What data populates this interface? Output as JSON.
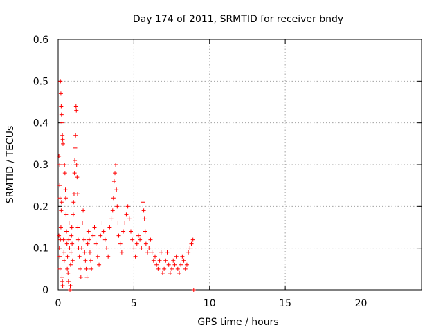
{
  "chart_data": {
    "type": "scatter",
    "title": "Day 174 of 2011, SRMTID for receiver bndy",
    "xlabel": "GPS time / hours",
    "ylabel": "SRMTID / TECUs",
    "xlim": [
      0,
      24
    ],
    "ylim": [
      0,
      0.6
    ],
    "xticks": [
      0,
      5,
      10,
      15,
      20
    ],
    "xtick_labels": [
      "0",
      "5",
      "10",
      "15",
      "20"
    ],
    "yticks": [
      0,
      0.1,
      0.2,
      0.3,
      0.4,
      0.5,
      0.6
    ],
    "ytick_labels": [
      "0",
      "0.1",
      "0.2",
      "0.3",
      "0.4",
      "0.5",
      "0.6"
    ],
    "grid": true,
    "marker": "+",
    "color": "#ff0000",
    "series": [
      {
        "name": "SRMTID",
        "points": [
          [
            0.05,
            0.32
          ],
          [
            0.1,
            0.3
          ],
          [
            0.1,
            0.25
          ],
          [
            0.12,
            0.22
          ],
          [
            0.15,
            0.5
          ],
          [
            0.18,
            0.47
          ],
          [
            0.2,
            0.44
          ],
          [
            0.22,
            0.42
          ],
          [
            0.25,
            0.4
          ],
          [
            0.28,
            0.37
          ],
          [
            0.3,
            0.36
          ],
          [
            0.32,
            0.35
          ],
          [
            0.05,
            0.13
          ],
          [
            0.08,
            0.1
          ],
          [
            0.1,
            0.08
          ],
          [
            0.12,
            0.05
          ],
          [
            0.15,
            0.12
          ],
          [
            0.18,
            0.15
          ],
          [
            0.2,
            0.19
          ],
          [
            0.22,
            0.21
          ],
          [
            0.25,
            0.03
          ],
          [
            0.28,
            0.02
          ],
          [
            0.3,
            0.01
          ],
          [
            0.35,
            0.12
          ],
          [
            0.38,
            0.09
          ],
          [
            0.4,
            0.07
          ],
          [
            0.42,
            0.3
          ],
          [
            0.45,
            0.28
          ],
          [
            0.48,
            0.24
          ],
          [
            0.5,
            0.22
          ],
          [
            0.52,
            0.18
          ],
          [
            0.55,
            0.14
          ],
          [
            0.58,
            0.11
          ],
          [
            0.6,
            0.05
          ],
          [
            0.62,
            0.08
          ],
          [
            0.65,
            0.04
          ],
          [
            0.68,
            0.02
          ],
          [
            0.7,
            0.12
          ],
          [
            0.72,
            0.16
          ],
          [
            0.75,
            0.1
          ],
          [
            0.78,
            0.0
          ],
          [
            0.8,
            0.01
          ],
          [
            0.82,
            0.06
          ],
          [
            0.85,
            0.09
          ],
          [
            0.88,
            0.13
          ],
          [
            0.9,
            0.15
          ],
          [
            0.92,
            0.11
          ],
          [
            0.95,
            0.07
          ],
          [
            1.0,
            0.18
          ],
          [
            1.02,
            0.21
          ],
          [
            1.05,
            0.23
          ],
          [
            1.08,
            0.28
          ],
          [
            1.1,
            0.31
          ],
          [
            1.12,
            0.34
          ],
          [
            1.15,
            0.37
          ],
          [
            1.18,
            0.44
          ],
          [
            1.2,
            0.43
          ],
          [
            1.22,
            0.3
          ],
          [
            1.25,
            0.27
          ],
          [
            1.28,
            0.23
          ],
          [
            1.3,
            0.15
          ],
          [
            1.32,
            0.12
          ],
          [
            1.35,
            0.1
          ],
          [
            1.4,
            0.08
          ],
          [
            1.45,
            0.05
          ],
          [
            1.5,
            0.03
          ],
          [
            1.55,
            0.1
          ],
          [
            1.6,
            0.16
          ],
          [
            1.65,
            0.19
          ],
          [
            1.7,
            0.12
          ],
          [
            1.75,
            0.09
          ],
          [
            1.8,
            0.07
          ],
          [
            1.85,
            0.05
          ],
          [
            1.9,
            0.03
          ],
          [
            1.95,
            0.11
          ],
          [
            2.0,
            0.14
          ],
          [
            2.05,
            0.12
          ],
          [
            2.1,
            0.09
          ],
          [
            2.15,
            0.07
          ],
          [
            2.2,
            0.05
          ],
          [
            2.3,
            0.13
          ],
          [
            2.4,
            0.15
          ],
          [
            2.5,
            0.11
          ],
          [
            2.6,
            0.08
          ],
          [
            2.7,
            0.06
          ],
          [
            2.8,
            0.13
          ],
          [
            2.9,
            0.16
          ],
          [
            3.0,
            0.14
          ],
          [
            3.1,
            0.12
          ],
          [
            3.2,
            0.1
          ],
          [
            3.3,
            0.08
          ],
          [
            3.4,
            0.15
          ],
          [
            3.5,
            0.17
          ],
          [
            3.6,
            0.19
          ],
          [
            3.65,
            0.22
          ],
          [
            3.7,
            0.26
          ],
          [
            3.75,
            0.28
          ],
          [
            3.8,
            0.3
          ],
          [
            3.85,
            0.24
          ],
          [
            3.9,
            0.2
          ],
          [
            3.95,
            0.16
          ],
          [
            4.0,
            0.13
          ],
          [
            4.1,
            0.11
          ],
          [
            4.2,
            0.09
          ],
          [
            4.3,
            0.14
          ],
          [
            4.4,
            0.16
          ],
          [
            4.5,
            0.18
          ],
          [
            4.6,
            0.2
          ],
          [
            4.7,
            0.17
          ],
          [
            4.8,
            0.14
          ],
          [
            4.9,
            0.12
          ],
          [
            5.0,
            0.1
          ],
          [
            5.1,
            0.08
          ],
          [
            5.2,
            0.11
          ],
          [
            5.3,
            0.13
          ],
          [
            5.4,
            0.12
          ],
          [
            5.5,
            0.1
          ],
          [
            5.6,
            0.21
          ],
          [
            5.65,
            0.19
          ],
          [
            5.7,
            0.17
          ],
          [
            5.75,
            0.14
          ],
          [
            5.8,
            0.11
          ],
          [
            5.9,
            0.09
          ],
          [
            6.0,
            0.1
          ],
          [
            6.1,
            0.12
          ],
          [
            6.2,
            0.09
          ],
          [
            6.3,
            0.07
          ],
          [
            6.4,
            0.08
          ],
          [
            6.5,
            0.06
          ],
          [
            6.6,
            0.05
          ],
          [
            6.7,
            0.07
          ],
          [
            6.8,
            0.09
          ],
          [
            6.9,
            0.04
          ],
          [
            7.0,
            0.05
          ],
          [
            7.1,
            0.07
          ],
          [
            7.2,
            0.09
          ],
          [
            7.3,
            0.06
          ],
          [
            7.4,
            0.04
          ],
          [
            7.5,
            0.05
          ],
          [
            7.6,
            0.07
          ],
          [
            7.7,
            0.06
          ],
          [
            7.8,
            0.08
          ],
          [
            7.9,
            0.05
          ],
          [
            8.0,
            0.04
          ],
          [
            8.1,
            0.06
          ],
          [
            8.2,
            0.08
          ],
          [
            8.3,
            0.07
          ],
          [
            8.4,
            0.05
          ],
          [
            8.5,
            0.06
          ],
          [
            8.6,
            0.09
          ],
          [
            8.7,
            0.1
          ],
          [
            8.8,
            0.11
          ],
          [
            8.9,
            0.12
          ],
          [
            8.95,
            0.0
          ]
        ]
      }
    ]
  }
}
